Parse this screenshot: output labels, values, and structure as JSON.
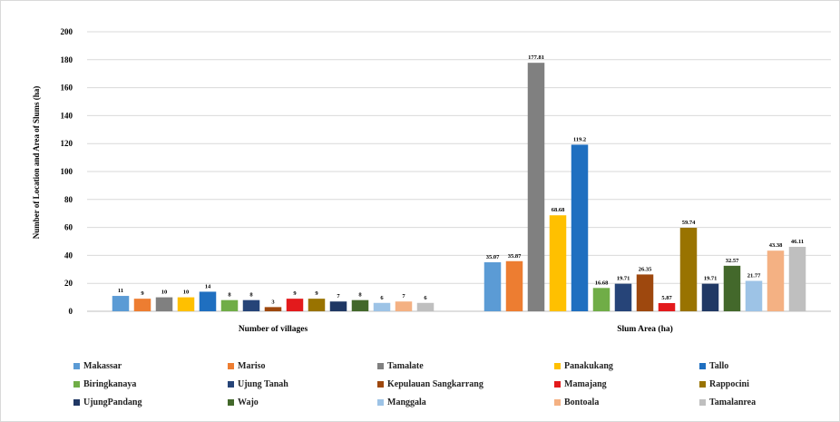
{
  "chart_data": {
    "type": "bar",
    "ylabel": "Number of Location and Area of Slums (ha)",
    "ylim": [
      0,
      200
    ],
    "yticks": [
      0,
      20,
      40,
      60,
      80,
      100,
      120,
      140,
      160,
      180,
      200
    ],
    "categories": [
      "Number of villages",
      "Slum Area (ha)"
    ],
    "grid": true,
    "legend_position": "bottom",
    "series": [
      {
        "name": "Makassar",
        "color": "#5b9bd5",
        "values": [
          11,
          35.07
        ],
        "labels": [
          "11",
          "35.07"
        ]
      },
      {
        "name": "Mariso",
        "color": "#ed7d31",
        "values": [
          9,
          35.87
        ],
        "labels": [
          "9",
          "35.87"
        ]
      },
      {
        "name": "Tamalate",
        "color": "#808080",
        "values": [
          10,
          177.81
        ],
        "labels": [
          "10",
          "177.81"
        ]
      },
      {
        "name": "Panakukang",
        "color": "#ffc000",
        "values": [
          10,
          68.68
        ],
        "labels": [
          "10",
          "68.68"
        ]
      },
      {
        "name": "Tallo",
        "color": "#1f6fc0",
        "values": [
          14,
          119.2
        ],
        "labels": [
          "14",
          "119.2"
        ]
      },
      {
        "name": "Biringkanaya",
        "color": "#70ad47",
        "values": [
          8,
          16.68
        ],
        "labels": [
          "8",
          "16.68"
        ]
      },
      {
        "name": "Ujung Tanah",
        "color": "#264478",
        "values": [
          8,
          19.71
        ],
        "labels": [
          "8",
          "19.71"
        ]
      },
      {
        "name": "Kepulauan Sangkarrang",
        "color": "#9e480e",
        "values": [
          3,
          26.35
        ],
        "labels": [
          "3",
          "26.35"
        ]
      },
      {
        "name": "Mamajang",
        "color": "#e31a1c",
        "values": [
          9,
          5.87
        ],
        "labels": [
          "9",
          "5.87"
        ]
      },
      {
        "name": "Rappocini",
        "color": "#997300",
        "values": [
          9,
          59.74
        ],
        "labels": [
          "9",
          "59.74"
        ]
      },
      {
        "name": "UjungPandang",
        "color": "#203864",
        "values": [
          7,
          19.71
        ],
        "labels": [
          "7",
          "19.71"
        ]
      },
      {
        "name": "Wajo",
        "color": "#43682b",
        "values": [
          8,
          32.57
        ],
        "labels": [
          "8",
          "32.57"
        ]
      },
      {
        "name": "Manggala",
        "color": "#9dc3e6",
        "values": [
          6,
          21.77
        ],
        "labels": [
          "6",
          "21.77"
        ]
      },
      {
        "name": "Bontoala",
        "color": "#f4b183",
        "values": [
          7,
          43.38
        ],
        "labels": [
          "7",
          "43.38"
        ]
      },
      {
        "name": "Tamalanrea",
        "color": "#bfbfbf",
        "values": [
          6,
          46.11
        ],
        "labels": [
          "6",
          "46.11"
        ]
      }
    ]
  }
}
